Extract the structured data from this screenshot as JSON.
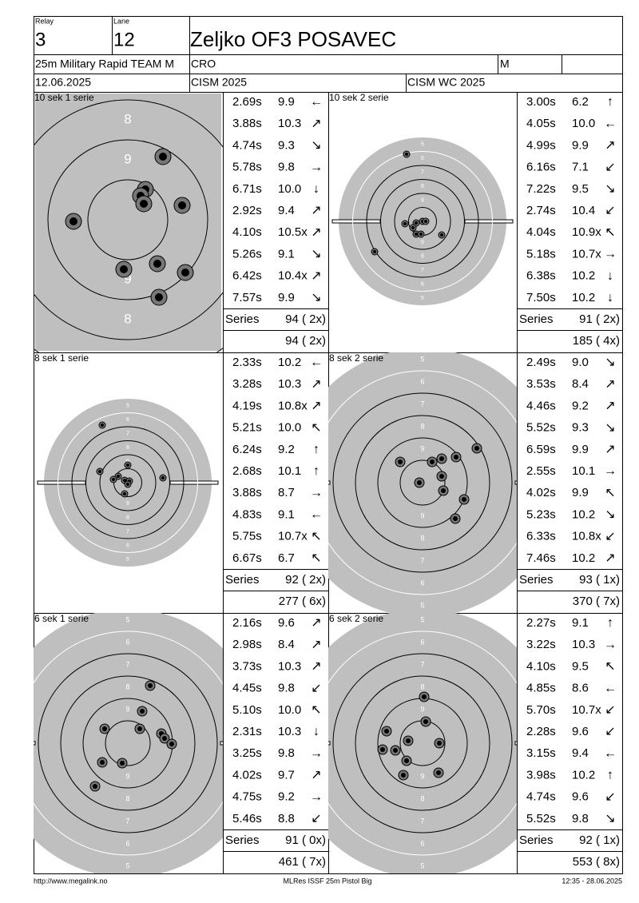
{
  "header": {
    "relay_label": "Relay",
    "relay": "3",
    "lane_label": "Lane",
    "lane": "12",
    "name": "Zeljko OF3 POSAVEC",
    "event": "25m Military Rapid TEAM M",
    "country": "CRO",
    "gender": "M",
    "date": "12.06.2025",
    "competition": "CISM 2025",
    "match": "CISM WC 2025"
  },
  "panels": [
    {
      "title": "10 sek 1 serie",
      "ring_labels": [
        "8",
        "9"
      ],
      "shots": [
        {
          "time": "2.69s",
          "score": "9.9",
          "dir": "←"
        },
        {
          "time": "3.88s",
          "score": "10.3",
          "dir": "↗"
        },
        {
          "time": "4.74s",
          "score": "9.3",
          "dir": "↘"
        },
        {
          "time": "5.78s",
          "score": "9.8",
          "dir": "→"
        },
        {
          "time": "6.71s",
          "score": "10.0",
          "dir": "↓"
        },
        {
          "time": "2.92s",
          "score": "9.4",
          "dir": "↗"
        },
        {
          "time": "4.10s",
          "score": "10.5x",
          "dir": "↗"
        },
        {
          "time": "5.26s",
          "score": "9.1",
          "dir": "↘"
        },
        {
          "time": "6.42s",
          "score": "10.4x",
          "dir": "↗"
        },
        {
          "time": "7.57s",
          "score": "9.9",
          "dir": "↘"
        }
      ],
      "series_label": "Series",
      "series": "94 ( 2x)",
      "total": "94 ( 2x)"
    },
    {
      "title": "10 sek 2 serie",
      "ring_labels": [
        "5",
        "6",
        "7",
        "8",
        "9"
      ],
      "shots": [
        {
          "time": "3.00s",
          "score": "6.2",
          "dir": "↑"
        },
        {
          "time": "4.05s",
          "score": "10.0",
          "dir": "←"
        },
        {
          "time": "4.99s",
          "score": "9.9",
          "dir": "↗"
        },
        {
          "time": "6.16s",
          "score": "7.1",
          "dir": "↙"
        },
        {
          "time": "7.22s",
          "score": "9.5",
          "dir": "↘"
        },
        {
          "time": "2.74s",
          "score": "10.4",
          "dir": "↙"
        },
        {
          "time": "4.04s",
          "score": "10.9x",
          "dir": "↖"
        },
        {
          "time": "5.18s",
          "score": "10.7x",
          "dir": "→"
        },
        {
          "time": "6.38s",
          "score": "10.2",
          "dir": "↓"
        },
        {
          "time": "7.50s",
          "score": "10.2",
          "dir": "↓"
        }
      ],
      "series_label": "Series",
      "series": "91 ( 2x)",
      "total": "185 ( 4x)"
    },
    {
      "title": "8 sek 1 serie",
      "ring_labels": [
        "5",
        "6",
        "7",
        "8",
        "9"
      ],
      "shots": [
        {
          "time": "2.33s",
          "score": "10.2",
          "dir": "←"
        },
        {
          "time": "3.28s",
          "score": "10.3",
          "dir": "↗"
        },
        {
          "time": "4.19s",
          "score": "10.8x",
          "dir": "↗"
        },
        {
          "time": "5.21s",
          "score": "10.0",
          "dir": "↖"
        },
        {
          "time": "6.24s",
          "score": "9.2",
          "dir": "↑"
        },
        {
          "time": "2.68s",
          "score": "10.1",
          "dir": "↑"
        },
        {
          "time": "3.88s",
          "score": "8.7",
          "dir": "→"
        },
        {
          "time": "4.83s",
          "score": "9.1",
          "dir": "←"
        },
        {
          "time": "5.75s",
          "score": "10.7x",
          "dir": "↖"
        },
        {
          "time": "6.67s",
          "score": "6.7",
          "dir": "↖"
        }
      ],
      "series_label": "Series",
      "series": "92 ( 2x)",
      "total": "277 ( 6x)"
    },
    {
      "title": "8 sek 2 serie",
      "ring_labels": [
        "5",
        "6",
        "7",
        "8",
        "9"
      ],
      "shots": [
        {
          "time": "2.49s",
          "score": "9.0",
          "dir": "↘"
        },
        {
          "time": "3.53s",
          "score": "8.4",
          "dir": "↗"
        },
        {
          "time": "4.46s",
          "score": "9.2",
          "dir": "↗"
        },
        {
          "time": "5.52s",
          "score": "9.3",
          "dir": "↘"
        },
        {
          "time": "6.59s",
          "score": "9.9",
          "dir": "↗"
        },
        {
          "time": "2.55s",
          "score": "10.1",
          "dir": "→"
        },
        {
          "time": "4.02s",
          "score": "9.9",
          "dir": "↖"
        },
        {
          "time": "5.23s",
          "score": "10.2",
          "dir": "↘"
        },
        {
          "time": "6.33s",
          "score": "10.8x",
          "dir": "↙"
        },
        {
          "time": "7.46s",
          "score": "10.2",
          "dir": "↗"
        }
      ],
      "series_label": "Series",
      "series": "93 ( 1x)",
      "total": "370 ( 7x)"
    },
    {
      "title": "6 sek 1 serie",
      "ring_labels": [
        "5",
        "6",
        "7",
        "8",
        "9"
      ],
      "shots": [
        {
          "time": "2.16s",
          "score": "9.6",
          "dir": "↗"
        },
        {
          "time": "2.98s",
          "score": "8.4",
          "dir": "↗"
        },
        {
          "time": "3.73s",
          "score": "10.3",
          "dir": "↗"
        },
        {
          "time": "4.45s",
          "score": "9.8",
          "dir": "↙"
        },
        {
          "time": "5.10s",
          "score": "10.0",
          "dir": "↖"
        },
        {
          "time": "2.31s",
          "score": "10.3",
          "dir": "↓"
        },
        {
          "time": "3.25s",
          "score": "9.8",
          "dir": "→"
        },
        {
          "time": "4.02s",
          "score": "9.7",
          "dir": "↗"
        },
        {
          "time": "4.75s",
          "score": "9.2",
          "dir": "→"
        },
        {
          "time": "5.46s",
          "score": "8.8",
          "dir": "↙"
        }
      ],
      "series_label": "Series",
      "series": "91 ( 0x)",
      "total": "461 ( 7x)"
    },
    {
      "title": "6 sek 2 serie",
      "ring_labels": [
        "5",
        "6",
        "7",
        "8",
        "9"
      ],
      "shots": [
        {
          "time": "2.27s",
          "score": "9.1",
          "dir": "↑"
        },
        {
          "time": "3.22s",
          "score": "10.3",
          "dir": "→"
        },
        {
          "time": "4.10s",
          "score": "9.5",
          "dir": "↖"
        },
        {
          "time": "4.85s",
          "score": "8.6",
          "dir": "←"
        },
        {
          "time": "5.70s",
          "score": "10.7x",
          "dir": "↙"
        },
        {
          "time": "2.28s",
          "score": "9.6",
          "dir": "↙"
        },
        {
          "time": "3.15s",
          "score": "9.4",
          "dir": "←"
        },
        {
          "time": "3.98s",
          "score": "10.2",
          "dir": "↑"
        },
        {
          "time": "4.74s",
          "score": "9.6",
          "dir": "↙"
        },
        {
          "time": "5.52s",
          "score": "9.8",
          "dir": "↘"
        }
      ],
      "series_label": "Series",
      "series": "92 ( 1x)",
      "total": "553 ( 8x)"
    }
  ],
  "footer": {
    "url": "http://www.megalink.no",
    "software": "MLRes ISSF 25m Pistol Big",
    "timestamp": "12:35 - 28.06.2025"
  }
}
